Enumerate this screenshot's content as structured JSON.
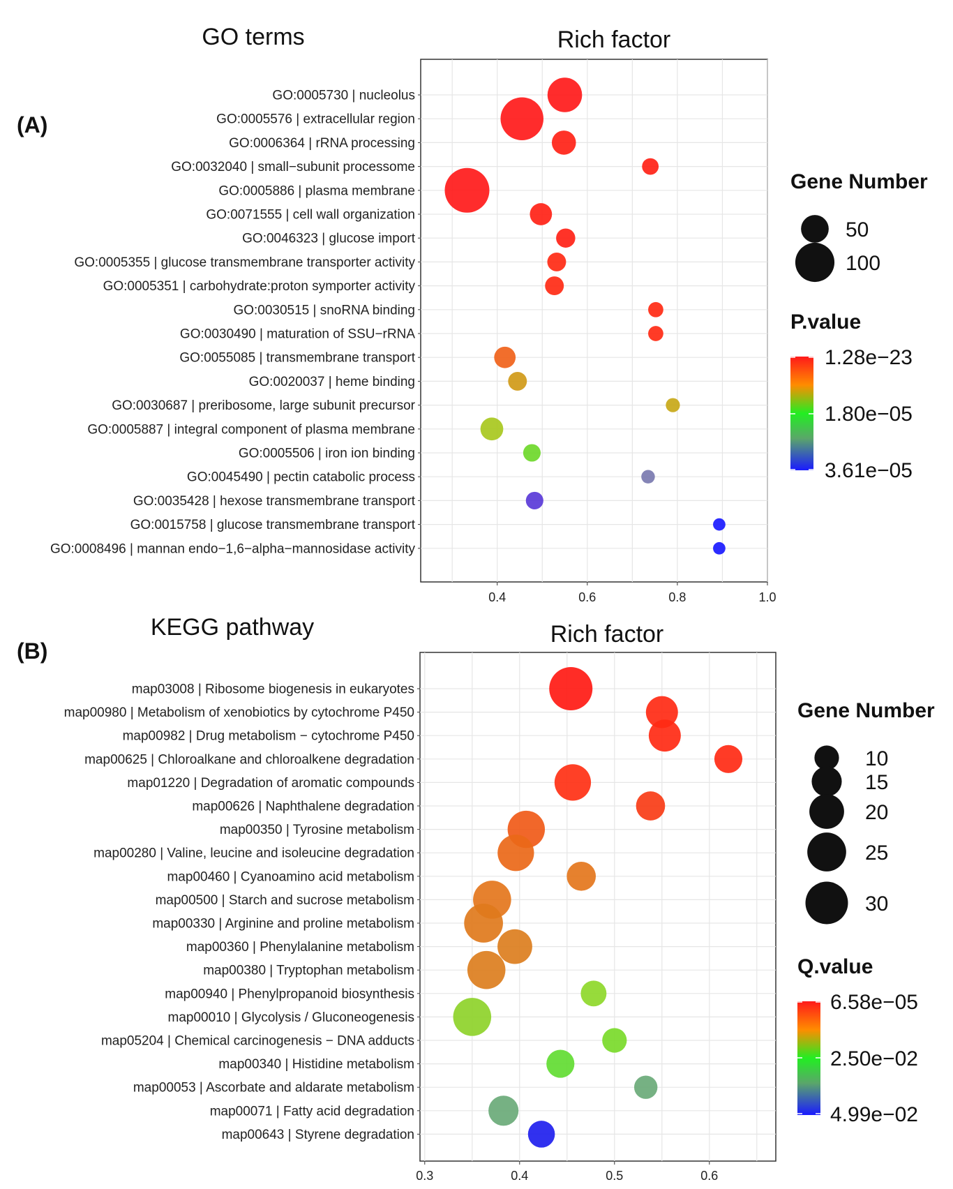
{
  "panels": [
    {
      "id": "A",
      "panel_label": "(A)",
      "section_title": "GO terms",
      "rich_factor_label": "Rich factor",
      "size_legend": {
        "title": "Gene Number",
        "items": [
          50,
          100
        ]
      },
      "color_legend": {
        "title": "P.value",
        "labels": [
          "1.28e−23",
          "1.80e−05",
          "3.61e−05"
        ]
      },
      "chart_data": {
        "type": "scatter",
        "title": "Rich factor",
        "xlabel": "",
        "ylabel": "",
        "xlim": [
          0.23,
          1.0
        ],
        "xticks": [
          0.4,
          0.6,
          0.8,
          1.0
        ],
        "xtick_labels": [
          "0.4",
          "0.6",
          "0.8",
          "1.0"
        ],
        "grid": true,
        "size_legend_values": [
          50,
          100
        ],
        "color_scale": [
          "#ff1a1a",
          "#ff6a00",
          "#c9b000",
          "#5ad21e",
          "#2ee84a",
          "#7a7a9a",
          "#2020ff"
        ],
        "points": [
          {
            "term": "GO:0005730 | nucleolus",
            "x": 0.55,
            "gene_number": 78,
            "color": "#ff1a1a"
          },
          {
            "term": "GO:0005576 | extracellular region",
            "x": 0.455,
            "gene_number": 120,
            "color": "#ff1a1a"
          },
          {
            "term": "GO:0006364 | rRNA processing",
            "x": 0.548,
            "gene_number": 38,
            "color": "#ff2216"
          },
          {
            "term": "GO:0032040 | small−subunit processome",
            "x": 0.74,
            "gene_number": 18,
            "color": "#ff2216"
          },
          {
            "term": "GO:0005886 | plasma membrane",
            "x": 0.333,
            "gene_number": 130,
            "color": "#ff1a1a"
          },
          {
            "term": "GO:0071555 | cell wall organization",
            "x": 0.497,
            "gene_number": 32,
            "color": "#ff2216"
          },
          {
            "term": "GO:0046323 | glucose import",
            "x": 0.552,
            "gene_number": 24,
            "color": "#ff2216"
          },
          {
            "term": "GO:0005355 | glucose transmembrane transporter activity",
            "x": 0.532,
            "gene_number": 23,
            "color": "#ff2a14"
          },
          {
            "term": "GO:0005351 | carbohydrate:proton symporter activity",
            "x": 0.527,
            "gene_number": 23,
            "color": "#ff2a14"
          },
          {
            "term": "GO:0030515 | snoRNA binding",
            "x": 0.752,
            "gene_number": 15,
            "color": "#ff2a14"
          },
          {
            "term": "GO:0030490 | maturation of SSU−rRNA",
            "x": 0.752,
            "gene_number": 15,
            "color": "#ff2a14"
          },
          {
            "term": "GO:0055085 | transmembrane transport",
            "x": 0.417,
            "gene_number": 30,
            "color": "#f0621a"
          },
          {
            "term": "GO:0020037 | heme binding",
            "x": 0.445,
            "gene_number": 23,
            "color": "#d09a18"
          },
          {
            "term": "GO:0030687 | preribosome, large subunit precursor",
            "x": 0.79,
            "gene_number": 13,
            "color": "#c8a818"
          },
          {
            "term": "GO:0005887 | integral component of plasma membrane",
            "x": 0.388,
            "gene_number": 34,
            "color": "#a8c81e"
          },
          {
            "term": "GO:0005506 | iron ion binding",
            "x": 0.477,
            "gene_number": 20,
            "color": "#6ed82a"
          },
          {
            "term": "GO:0045490 | pectin catabolic process",
            "x": 0.735,
            "gene_number": 12,
            "color": "#7a7ab0"
          },
          {
            "term": "GO:0035428 | hexose transmembrane transport",
            "x": 0.483,
            "gene_number": 20,
            "color": "#5a3ad8"
          },
          {
            "term": "GO:0015758 | glucose transmembrane transport",
            "x": 0.893,
            "gene_number": 10,
            "color": "#1a1aff"
          },
          {
            "term": "GO:0008496 | mannan endo−1,6−alpha−mannosidase activity",
            "x": 0.893,
            "gene_number": 10,
            "color": "#1a1aff"
          }
        ]
      }
    },
    {
      "id": "B",
      "panel_label": "(B)",
      "section_title": "KEGG pathway",
      "rich_factor_label": "Rich factor",
      "size_legend": {
        "title": "Gene Number",
        "items": [
          10,
          15,
          20,
          25,
          30
        ]
      },
      "color_legend": {
        "title": "Q.value",
        "labels": [
          "6.58e−05",
          "2.50e−02",
          "4.99e−02"
        ]
      },
      "chart_data": {
        "type": "scatter",
        "title": "Rich factor",
        "xlabel": "",
        "ylabel": "",
        "xlim": [
          0.295,
          0.67
        ],
        "xticks": [
          0.3,
          0.4,
          0.5,
          0.6
        ],
        "xtick_labels": [
          "0.3",
          "0.4",
          "0.5",
          "0.6"
        ],
        "grid": true,
        "size_legend_values": [
          10,
          15,
          20,
          25,
          30
        ],
        "color_scale": [
          "#ff1a1a",
          "#f06a18",
          "#d88a20",
          "#6ed82a",
          "#2ee84a",
          "#6aaa7a",
          "#2020ff"
        ],
        "points": [
          {
            "term": "map03008 | Ribosome biogenesis in eukaryotes",
            "x": 0.454,
            "gene_number": 31,
            "color": "#ff1a14"
          },
          {
            "term": "map00980 | Metabolism of xenobiotics by cytochrome P450",
            "x": 0.55,
            "gene_number": 17,
            "color": "#ff2a14"
          },
          {
            "term": "map00982 | Drug metabolism − cytochrome P450",
            "x": 0.553,
            "gene_number": 17,
            "color": "#ff2a14"
          },
          {
            "term": "map00625 | Chloroalkane and chloroalkene degradation",
            "x": 0.62,
            "gene_number": 13,
            "color": "#ff2a14"
          },
          {
            "term": "map01220 | Degradation of aromatic compounds",
            "x": 0.456,
            "gene_number": 22,
            "color": "#ff3014"
          },
          {
            "term": "map00626 | Naphthalene degradation",
            "x": 0.538,
            "gene_number": 14,
            "color": "#f83c16"
          },
          {
            "term": "map00350 | Tyrosine metabolism",
            "x": 0.407,
            "gene_number": 23,
            "color": "#f05a18"
          },
          {
            "term": "map00280 | Valine, leucine and isoleucine degradation",
            "x": 0.396,
            "gene_number": 22,
            "color": "#ea6818"
          },
          {
            "term": "map00460 | Cyanoamino acid metabolism",
            "x": 0.465,
            "gene_number": 14,
            "color": "#e4761c"
          },
          {
            "term": "map00500 | Starch and sucrose metabolism",
            "x": 0.371,
            "gene_number": 24,
            "color": "#e4761c"
          },
          {
            "term": "map00330 | Arginine and proline metabolism",
            "x": 0.362,
            "gene_number": 25,
            "color": "#e07a1c"
          },
          {
            "term": "map00360 | Phenylalanine metabolism",
            "x": 0.395,
            "gene_number": 20,
            "color": "#dc7e1e"
          },
          {
            "term": "map00380 | Tryptophan metabolism",
            "x": 0.365,
            "gene_number": 24,
            "color": "#dc7e1e"
          },
          {
            "term": "map00940 | Phenylpropanoid biosynthesis",
            "x": 0.478,
            "gene_number": 11,
            "color": "#8ed82a"
          },
          {
            "term": "map00010 | Glycolysis / Gluconeogenesis",
            "x": 0.35,
            "gene_number": 24,
            "color": "#8ed22a"
          },
          {
            "term": "map05204 | Chemical carcinogenesis − DNA adducts",
            "x": 0.5,
            "gene_number": 10,
            "color": "#7ada2a"
          },
          {
            "term": "map00340 | Histidine metabolism",
            "x": 0.443,
            "gene_number": 13,
            "color": "#62dc32"
          },
          {
            "term": "map00053 | Ascorbate and aldarate metabolism",
            "x": 0.533,
            "gene_number": 9,
            "color": "#6aaa78"
          },
          {
            "term": "map00071 | Fatty acid degradation",
            "x": 0.383,
            "gene_number": 15,
            "color": "#6aaa78"
          },
          {
            "term": "map00643 | Styrene degradation",
            "x": 0.423,
            "gene_number": 12,
            "color": "#2020ee"
          }
        ]
      }
    }
  ]
}
